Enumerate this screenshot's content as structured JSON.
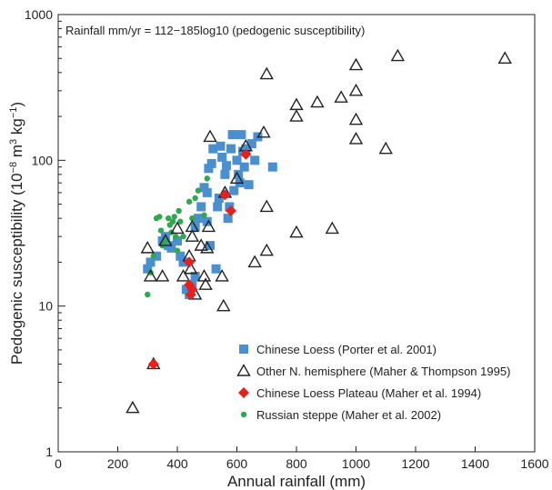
{
  "chart_data": {
    "type": "scatter",
    "annotation": "Rainfall mm/yr  = 112−185log10 (pedogenic susceptibility)",
    "xlabel": "Annual rainfall (mm)",
    "ylabel_main": "Pedogenic susceptibility (10",
    "ylabel_exp1": "−8",
    "ylabel_mid": " m",
    "ylabel_exp2": "3",
    "ylabel_mid2": " kg",
    "ylabel_exp3": "−1",
    "ylabel_end": ")",
    "xlim": [
      0,
      1600
    ],
    "ylim": [
      1,
      1000
    ],
    "yscale": "log",
    "xticks": [
      0,
      200,
      400,
      600,
      800,
      1000,
      1200,
      1400,
      1600
    ],
    "yticks": [
      1,
      10,
      100,
      1000
    ],
    "legend_position": "lower-right",
    "colors": {
      "chinese_loess": "#4a8fd0",
      "other_nh": "#222222",
      "loess_plateau": "#e8201c",
      "russian_steppe": "#2fa84f"
    },
    "series": [
      {
        "name": "Chinese Loess (Porter et al. 2001)",
        "marker": "square",
        "points": [
          [
            300,
            18
          ],
          [
            310,
            20
          ],
          [
            330,
            22
          ],
          [
            350,
            28
          ],
          [
            360,
            30
          ],
          [
            370,
            26
          ],
          [
            380,
            25
          ],
          [
            400,
            28
          ],
          [
            410,
            22
          ],
          [
            420,
            20
          ],
          [
            430,
            13
          ],
          [
            440,
            12
          ],
          [
            450,
            14
          ],
          [
            460,
            16
          ],
          [
            470,
            40
          ],
          [
            480,
            48
          ],
          [
            490,
            65
          ],
          [
            500,
            38
          ],
          [
            505,
            88
          ],
          [
            510,
            26
          ],
          [
            515,
            95
          ],
          [
            520,
            120
          ],
          [
            530,
            18
          ],
          [
            535,
            48
          ],
          [
            540,
            55
          ],
          [
            545,
            125
          ],
          [
            550,
            105
          ],
          [
            560,
            80
          ],
          [
            565,
            92
          ],
          [
            570,
            40
          ],
          [
            575,
            48
          ],
          [
            580,
            120
          ],
          [
            585,
            150
          ],
          [
            590,
            62
          ],
          [
            600,
            100
          ],
          [
            605,
            80
          ],
          [
            610,
            70
          ],
          [
            615,
            150
          ],
          [
            620,
            115
          ],
          [
            625,
            90
          ],
          [
            630,
            120
          ],
          [
            640,
            68
          ],
          [
            650,
            130
          ],
          [
            660,
            100
          ],
          [
            670,
            145
          ],
          [
            720,
            90
          ],
          [
            460,
            35
          ],
          [
            500,
            60
          ]
        ]
      },
      {
        "name": "Other N. hemisphere (Maher & Thompson 1995)",
        "marker": "triangle",
        "points": [
          [
            250,
            2
          ],
          [
            300,
            25
          ],
          [
            310,
            16
          ],
          [
            320,
            4
          ],
          [
            350,
            16
          ],
          [
            360,
            28
          ],
          [
            400,
            34
          ],
          [
            420,
            16
          ],
          [
            440,
            22
          ],
          [
            445,
            18
          ],
          [
            450,
            30
          ],
          [
            450,
            35
          ],
          [
            460,
            12
          ],
          [
            480,
            26
          ],
          [
            490,
            16
          ],
          [
            495,
            14
          ],
          [
            500,
            25
          ],
          [
            505,
            35
          ],
          [
            510,
            145
          ],
          [
            550,
            16
          ],
          [
            555,
            10
          ],
          [
            560,
            60
          ],
          [
            600,
            75
          ],
          [
            630,
            125
          ],
          [
            660,
            20
          ],
          [
            690,
            155
          ],
          [
            700,
            48
          ],
          [
            700,
            24
          ],
          [
            700,
            390
          ],
          [
            800,
            240
          ],
          [
            800,
            200
          ],
          [
            800,
            32
          ],
          [
            870,
            250
          ],
          [
            920,
            34
          ],
          [
            950,
            270
          ],
          [
            1000,
            450
          ],
          [
            1000,
            300
          ],
          [
            1000,
            190
          ],
          [
            1000,
            140
          ],
          [
            1100,
            120
          ],
          [
            1140,
            520
          ],
          [
            1500,
            500
          ]
        ]
      },
      {
        "name": "Chinese Loess Plateau (Maher et al. 1994)",
        "marker": "diamond",
        "points": [
          [
            320,
            4
          ],
          [
            440,
            20
          ],
          [
            440,
            14
          ],
          [
            445,
            12
          ],
          [
            450,
            13
          ],
          [
            560,
            58
          ],
          [
            580,
            45
          ],
          [
            630,
            110
          ]
        ]
      },
      {
        "name": "Russian steppe (Maher et al. 2002)",
        "marker": "circle",
        "points": [
          [
            300,
            12
          ],
          [
            310,
            17
          ],
          [
            320,
            22
          ],
          [
            330,
            40
          ],
          [
            340,
            41
          ],
          [
            345,
            33
          ],
          [
            350,
            26
          ],
          [
            360,
            28
          ],
          [
            370,
            40
          ],
          [
            375,
            36
          ],
          [
            380,
            32
          ],
          [
            385,
            38
          ],
          [
            390,
            41
          ],
          [
            395,
            30
          ],
          [
            400,
            24
          ],
          [
            405,
            45
          ],
          [
            410,
            38
          ],
          [
            420,
            30
          ],
          [
            440,
            52
          ],
          [
            450,
            40
          ],
          [
            460,
            55
          ],
          [
            470,
            62
          ],
          [
            490,
            42
          ],
          [
            500,
            75
          ]
        ]
      }
    ]
  }
}
